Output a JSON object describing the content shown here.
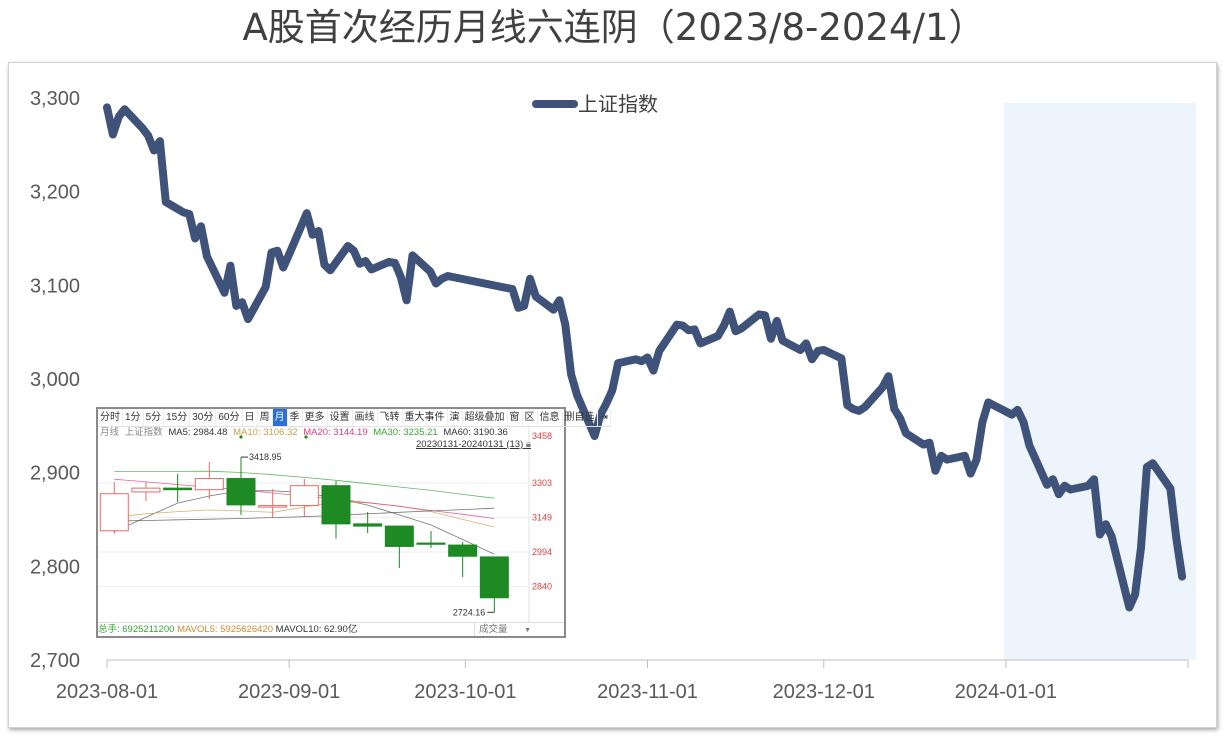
{
  "title": "A股首次经历月线六连阴（2023/8-2024/1）",
  "colors": {
    "line": "#3f527a",
    "highlight": "#edf4fb",
    "axis_text": "#595959",
    "up": "#e86a6a",
    "down": "#1d8a24",
    "axis_price": "#e04040"
  },
  "chart_data": {
    "type": "line",
    "title": "A股首次经历月线六连阴（2023/8-2024/1）",
    "legend": {
      "position": "top-center"
    },
    "grid": false,
    "ylim": [
      2700,
      3300
    ],
    "yticks": [
      2700,
      2800,
      2900,
      3000,
      3100,
      3200,
      3300
    ],
    "ytick_labels": [
      "2,700",
      "2,800",
      "2,900",
      "3,000",
      "3,100",
      "3,200",
      "3,300"
    ],
    "xlim": [
      "2023-08-01",
      "2024-02-01"
    ],
    "xticks": [
      "2023-08-01",
      "2023-09-01",
      "2023-10-01",
      "2023-11-01",
      "2023-12-01",
      "2024-01-01",
      "2024-02-01"
    ],
    "xtick_labels": [
      "2023-08-01",
      "2023-09-01",
      "2023-10-01",
      "2023-11-01",
      "2023-12-01",
      "2024-01-01",
      ""
    ],
    "highlight_range": [
      "2024-01-01",
      "2024-02-01"
    ],
    "series": [
      {
        "name": "上证指数",
        "x": [
          "2023-08-01",
          "2023-08-02",
          "2023-08-03",
          "2023-08-04",
          "2023-08-07",
          "2023-08-08",
          "2023-08-09",
          "2023-08-10",
          "2023-08-11",
          "2023-08-14",
          "2023-08-15",
          "2023-08-16",
          "2023-08-17",
          "2023-08-18",
          "2023-08-21",
          "2023-08-22",
          "2023-08-23",
          "2023-08-24",
          "2023-08-25",
          "2023-08-28",
          "2023-08-29",
          "2023-08-30",
          "2023-08-31",
          "2023-09-01",
          "2023-09-04",
          "2023-09-05",
          "2023-09-06",
          "2023-09-07",
          "2023-09-08",
          "2023-09-11",
          "2023-09-12",
          "2023-09-13",
          "2023-09-14",
          "2023-09-15",
          "2023-09-18",
          "2023-09-19",
          "2023-09-20",
          "2023-09-21",
          "2023-09-22",
          "2023-09-25",
          "2023-09-26",
          "2023-09-27",
          "2023-09-28",
          "2023-10-09",
          "2023-10-10",
          "2023-10-11",
          "2023-10-12",
          "2023-10-13",
          "2023-10-16",
          "2023-10-17",
          "2023-10-18",
          "2023-10-19",
          "2023-10-20",
          "2023-10-23",
          "2023-10-24",
          "2023-10-25",
          "2023-10-26",
          "2023-10-27",
          "2023-10-30",
          "2023-10-31",
          "2023-11-01",
          "2023-11-02",
          "2023-11-03",
          "2023-11-06",
          "2023-11-07",
          "2023-11-08",
          "2023-11-09",
          "2023-11-10",
          "2023-11-13",
          "2023-11-14",
          "2023-11-15",
          "2023-11-16",
          "2023-11-17",
          "2023-11-20",
          "2023-11-21",
          "2023-11-22",
          "2023-11-23",
          "2023-11-24",
          "2023-11-27",
          "2023-11-28",
          "2023-11-29",
          "2023-11-30",
          "2023-12-01",
          "2023-12-04",
          "2023-12-05",
          "2023-12-06",
          "2023-12-07",
          "2023-12-08",
          "2023-12-11",
          "2023-12-12",
          "2023-12-13",
          "2023-12-14",
          "2023-12-15",
          "2023-12-18",
          "2023-12-19",
          "2023-12-20",
          "2023-12-21",
          "2023-12-22",
          "2023-12-25",
          "2023-12-26",
          "2023-12-27",
          "2023-12-28",
          "2023-12-29",
          "2024-01-02",
          "2024-01-03",
          "2024-01-04",
          "2024-01-05",
          "2024-01-08",
          "2024-01-09",
          "2024-01-10",
          "2024-01-11",
          "2024-01-12",
          "2024-01-15",
          "2024-01-16",
          "2024-01-17",
          "2024-01-18",
          "2024-01-19",
          "2024-01-22",
          "2024-01-23",
          "2024-01-24",
          "2024-01-25",
          "2024-01-26",
          "2024-01-29",
          "2024-01-30",
          "2024-01-31"
        ],
        "values": [
          3290,
          3261,
          3280,
          3288,
          3268,
          3260,
          3244,
          3254,
          3189,
          3178,
          3176,
          3150,
          3163,
          3131,
          3092,
          3121,
          3078,
          3082,
          3064,
          3098,
          3135,
          3137,
          3119,
          3133,
          3177,
          3154,
          3158,
          3122,
          3116,
          3142,
          3137,
          3123,
          3126,
          3117,
          3125,
          3124,
          3109,
          3084,
          3132,
          3115,
          3102,
          3107,
          3110,
          3096,
          3076,
          3078,
          3107,
          3088,
          3074,
          3084,
          3058,
          3005,
          2983,
          2939,
          2962,
          2974,
          2988,
          3017,
          3021,
          3019,
          3023,
          3009,
          3030,
          3058,
          3057,
          3052,
          3053,
          3038,
          3046,
          3057,
          3072,
          3051,
          3054,
          3069,
          3068,
          3043,
          3062,
          3041,
          3031,
          3038,
          3021,
          3030,
          3031,
          3022,
          2972,
          2968,
          2966,
          2970,
          2991,
          3003,
          2968,
          2958,
          2942,
          2930,
          2932,
          2902,
          2918,
          2914,
          2918,
          2899,
          2914,
          2954,
          2975,
          2962,
          2967,
          2954,
          2929,
          2887,
          2893,
          2877,
          2886,
          2882,
          2886,
          2893,
          2834,
          2845,
          2832,
          2756,
          2770,
          2820,
          2906,
          2910,
          2883,
          2830,
          2789
        ]
      }
    ]
  },
  "inset": {
    "toolbar": [
      "分时",
      "1分",
      "5分",
      "15分",
      "30分",
      "60分",
      "日",
      "周",
      "月",
      "季",
      "更多",
      "设置",
      "画线",
      "飞转",
      "重大事件",
      "演",
      "超级叠加",
      "窗",
      "区",
      "信息",
      "删自选",
      "⇥"
    ],
    "selected_tab": "月",
    "info": {
      "period": "月线",
      "name": "上证指数",
      "ma5": "MA5: 2984.48",
      "ma10": "MA10: 3106.32",
      "ma20": "MA20: 3144.19",
      "ma30": "MA30: 3235.21",
      "ma60": "MA60: 3190.36"
    },
    "ma_colors": {
      "ma5": "#555555",
      "ma10": "#c9a24a",
      "ma20": "#e0407a",
      "ma30": "#3aa83a",
      "ma60": "#555555"
    },
    "range_label": "20230131-20240131 (13)",
    "price_axis": [
      3458,
      3303,
      3149,
      2994,
      2840
    ],
    "high_label": "3418.95",
    "low_label": "2724.16",
    "candles": [
      {
        "o": 3089,
        "h": 3307,
        "l": 3075,
        "c": 3255
      },
      {
        "o": 3263,
        "h": 3307,
        "l": 3222,
        "c": 3280
      },
      {
        "o": 3280,
        "h": 3343,
        "l": 3218,
        "c": 3273
      },
      {
        "o": 3273,
        "h": 3397,
        "l": 3231,
        "c": 3323
      },
      {
        "o": 3323,
        "h": 3418.95,
        "l": 3160,
        "c": 3205
      },
      {
        "o": 3195,
        "h": 3276,
        "l": 3146,
        "c": 3202
      },
      {
        "o": 3202,
        "h": 3321,
        "l": 3151,
        "c": 3291
      },
      {
        "o": 3291,
        "h": 3312,
        "l": 3053,
        "c": 3120
      },
      {
        "o": 3120,
        "h": 3173,
        "l": 3079,
        "c": 3110
      },
      {
        "o": 3110,
        "h": 3106,
        "l": 2922,
        "c": 3019
      },
      {
        "o": 3034,
        "h": 3088,
        "l": 3012,
        "c": 3030
      },
      {
        "o": 3025,
        "h": 3039,
        "l": 2882,
        "c": 2975
      },
      {
        "o": 2972,
        "h": 2972,
        "l": 2724.16,
        "c": 2789
      }
    ],
    "ma_series": {
      "ma5": [
        3085,
        3150,
        3213,
        3245,
        3269,
        3268,
        3260,
        3235,
        3204,
        3160,
        3115,
        3050,
        2984
      ],
      "ma10": [
        3150,
        3165,
        3175,
        3182,
        3178,
        3172,
        3195,
        3219,
        3215,
        3200,
        3175,
        3140,
        3106
      ],
      "ma20": [
        3320,
        3308,
        3296,
        3284,
        3272,
        3258,
        3245,
        3232,
        3215,
        3198,
        3180,
        3163,
        3144
      ],
      "ma30": [
        3354,
        3354,
        3355,
        3356,
        3350,
        3340,
        3328,
        3315,
        3300,
        3285,
        3270,
        3252,
        3235
      ],
      "ma60": [
        3133,
        3135,
        3138,
        3141,
        3144,
        3148,
        3152,
        3158,
        3165,
        3172,
        3178,
        3184,
        3190
      ]
    },
    "bottom": {
      "total": "总手: 6925211200",
      "mavol5": "MAVOL5: 5925626420",
      "mavol10": "MAVOL10: 62.90亿",
      "volume_select": "成交量"
    }
  }
}
